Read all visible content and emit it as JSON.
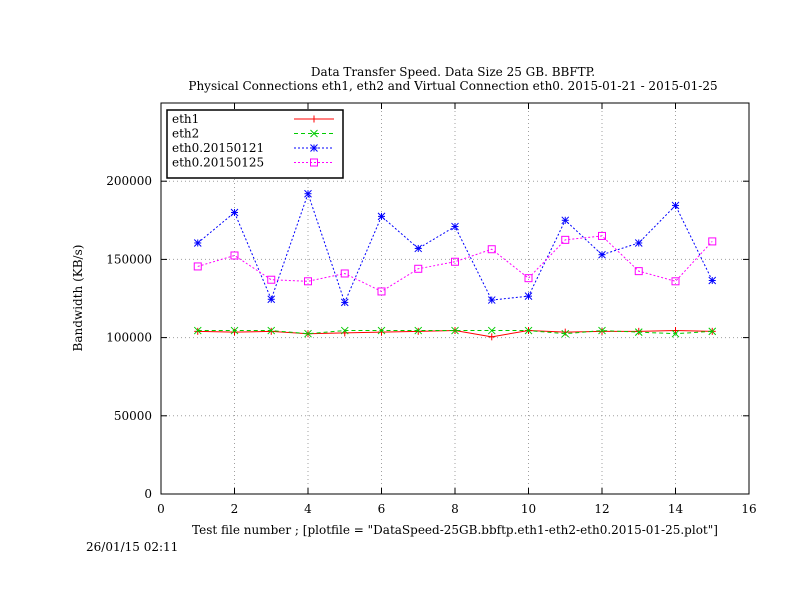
{
  "chart_data": {
    "type": "line",
    "title": "Data Transfer Speed. Data Size 25 GB. BBFTP.",
    "subtitle": "Physical Connections eth1, eth2 and Virtual Connection eth0. 2015-01-21 - 2015-01-25",
    "xlabel": "Test file number ; [plotfile = \"DataSpeed-25GB.bbftp.eth1-eth2-eth0.2015-01-25.plot\"]",
    "ylabel": "Bandwidth (KB/s)",
    "xlim": [
      0,
      16
    ],
    "ylim": [
      0,
      250000
    ],
    "xticks": [
      0,
      2,
      4,
      6,
      8,
      10,
      12,
      14,
      16
    ],
    "yticks": [
      0,
      50000,
      100000,
      150000,
      200000
    ],
    "grid": true,
    "legend_position": "top-left",
    "x": [
      1,
      2,
      3,
      4,
      5,
      6,
      7,
      8,
      9,
      10,
      11,
      12,
      13,
      14,
      15
    ],
    "series": [
      {
        "name": "eth1",
        "color": "#ff0000",
        "marker": "plus",
        "dash": "solid",
        "values": [
          104000,
          103500,
          104000,
          102500,
          103000,
          103500,
          104000,
          104500,
          100500,
          104500,
          103500,
          104000,
          104000,
          104500,
          104000
        ]
      },
      {
        "name": "eth2",
        "color": "#00cc00",
        "marker": "cross",
        "dash": "dashed",
        "values": [
          104500,
          104500,
          104500,
          102500,
          104500,
          104500,
          104500,
          104500,
          104500,
          104500,
          102500,
          104500,
          103500,
          102500,
          104000
        ]
      },
      {
        "name": "eth0.20150121",
        "color": "#0000ff",
        "marker": "star",
        "dash": "dotted",
        "values": [
          160500,
          180000,
          124500,
          192000,
          122500,
          177500,
          157000,
          171000,
          124000,
          126500,
          175000,
          153000,
          160500,
          184500,
          136500
        ]
      },
      {
        "name": "eth0.20150125",
        "color": "#ff00ff",
        "marker": "square",
        "dash": "dotted",
        "values": [
          145500,
          152500,
          137000,
          136000,
          141000,
          129500,
          144000,
          148500,
          156500,
          138000,
          162500,
          165000,
          142500,
          136000,
          161500
        ]
      }
    ]
  },
  "timestamp": "26/01/15 02:11"
}
